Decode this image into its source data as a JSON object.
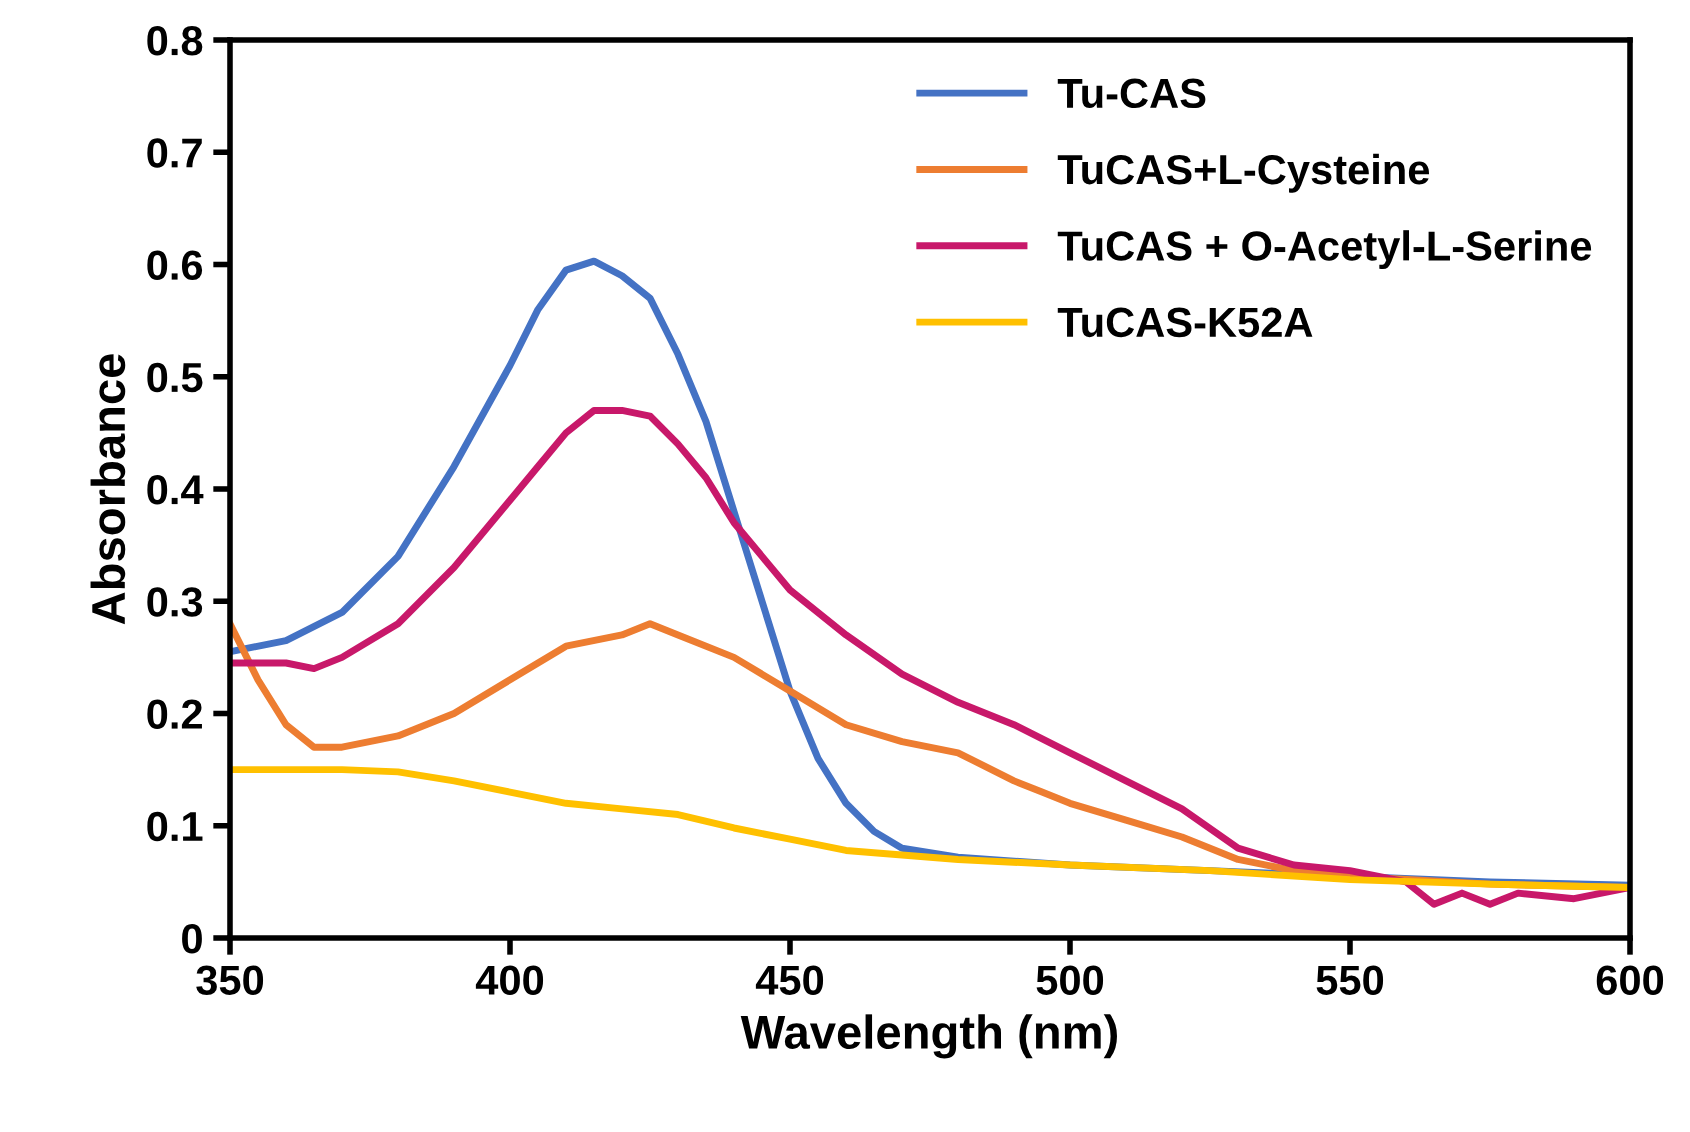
{
  "chart_data": {
    "type": "line",
    "xlabel": "Wavelength (nm)",
    "ylabel": "Absorbance",
    "xlim": [
      350,
      600
    ],
    "xticks": [
      350,
      400,
      450,
      500,
      550,
      600
    ],
    "ylim": [
      0,
      0.8
    ],
    "yticks": [
      0,
      0.1,
      0.2,
      0.3,
      0.4,
      0.5,
      0.6,
      0.7,
      0.8
    ],
    "grid": false,
    "legend": "top right",
    "marker": "none",
    "line_style": "solid",
    "series": [
      {
        "name": "Tu-CAS",
        "color": "#4472c4",
        "x": [
          350,
          360,
          370,
          380,
          390,
          400,
          405,
          410,
          415,
          420,
          425,
          430,
          435,
          440,
          445,
          450,
          455,
          460,
          465,
          470,
          480,
          500,
          525,
          550,
          575,
          600
        ],
        "values": [
          0.255,
          0.265,
          0.29,
          0.34,
          0.42,
          0.51,
          0.56,
          0.595,
          0.603,
          0.59,
          0.57,
          0.52,
          0.46,
          0.38,
          0.3,
          0.22,
          0.16,
          0.12,
          0.095,
          0.08,
          0.072,
          0.065,
          0.06,
          0.055,
          0.05,
          0.047
        ]
      },
      {
        "name": "TuCAS+L-Cysteine",
        "color": "#ed7d31",
        "x": [
          350,
          355,
          360,
          365,
          370,
          380,
          390,
          400,
          410,
          420,
          425,
          430,
          440,
          450,
          460,
          470,
          480,
          490,
          495,
          500,
          510,
          520,
          530,
          540,
          550,
          575,
          600
        ],
        "values": [
          0.28,
          0.23,
          0.19,
          0.17,
          0.17,
          0.18,
          0.2,
          0.23,
          0.26,
          0.27,
          0.28,
          0.27,
          0.25,
          0.22,
          0.19,
          0.175,
          0.165,
          0.14,
          0.13,
          0.12,
          0.105,
          0.09,
          0.07,
          0.06,
          0.055,
          0.048,
          0.045
        ]
      },
      {
        "name": "TuCAS + O-Acetyl-L-Serine",
        "color": "#c8186a",
        "x": [
          350,
          360,
          365,
          370,
          380,
          390,
          400,
          405,
          410,
          415,
          420,
          425,
          430,
          435,
          440,
          445,
          450,
          460,
          470,
          480,
          490,
          500,
          510,
          520,
          530,
          540,
          550,
          560,
          565,
          570,
          575,
          580,
          590,
          600
        ],
        "values": [
          0.245,
          0.245,
          0.24,
          0.25,
          0.28,
          0.33,
          0.39,
          0.42,
          0.45,
          0.47,
          0.47,
          0.465,
          0.44,
          0.41,
          0.37,
          0.34,
          0.31,
          0.27,
          0.235,
          0.21,
          0.19,
          0.165,
          0.14,
          0.115,
          0.08,
          0.065,
          0.06,
          0.05,
          0.03,
          0.04,
          0.03,
          0.04,
          0.035,
          0.045
        ]
      },
      {
        "name": "TuCAS-K52A",
        "color": "#ffc000",
        "x": [
          350,
          370,
          380,
          390,
          400,
          410,
          420,
          430,
          440,
          450,
          460,
          480,
          500,
          525,
          550,
          575,
          600
        ],
        "values": [
          0.15,
          0.15,
          0.148,
          0.14,
          0.13,
          0.12,
          0.115,
          0.11,
          0.098,
          0.088,
          0.078,
          0.07,
          0.065,
          0.06,
          0.052,
          0.048,
          0.045
        ]
      }
    ]
  }
}
